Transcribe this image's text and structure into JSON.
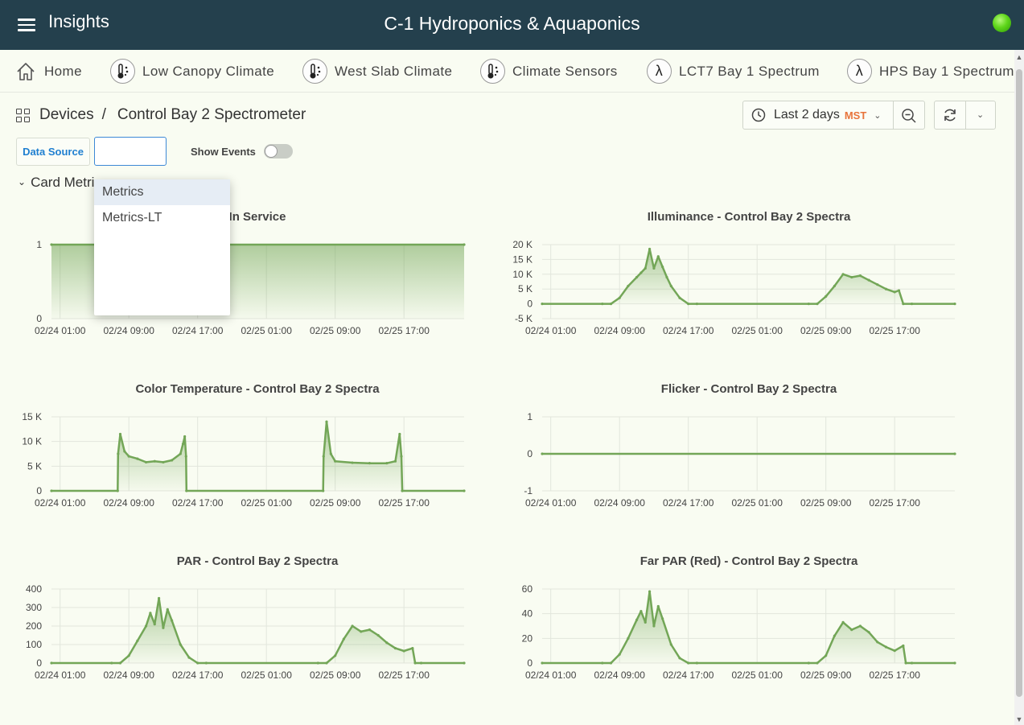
{
  "header": {
    "app_title": "Insights",
    "site_title": "C-1 Hydroponics & Aquaponics",
    "status_color": "#4ccf12"
  },
  "nav": {
    "items": [
      {
        "label": "Home",
        "icon": "home-icon"
      },
      {
        "label": "Low Canopy Climate",
        "icon": "thermometer-icon"
      },
      {
        "label": "West Slab Climate",
        "icon": "thermometer-icon"
      },
      {
        "label": "Climate Sensors",
        "icon": "thermometer-icon"
      },
      {
        "label": "LCT7 Bay 1 Spectrum",
        "icon": "lambda-icon"
      },
      {
        "label": "HPS Bay 1 Spectrum",
        "icon": "lambda-icon"
      }
    ]
  },
  "breadcrumb": {
    "parent": "Devices",
    "separator": "/",
    "current": "Control Bay 2 Spectrometer"
  },
  "timepicker": {
    "range": "Last 2 days",
    "timezone": "MST"
  },
  "controls": {
    "data_source_label": "Data Source",
    "data_source_value": "",
    "show_events_label": "Show Events",
    "show_events_on": false
  },
  "row": {
    "title": "Card Metri"
  },
  "dropdown": {
    "options": [
      "Metrics",
      "Metrics-LT"
    ],
    "highlighted": "Metrics"
  },
  "colors": {
    "series": "#73a657",
    "accent": "#1f7fd0",
    "timezone": "#e8743b"
  },
  "panels": [
    {
      "title": "In Service"
    },
    {
      "title": "Illuminance - Control Bay 2 Spectra"
    },
    {
      "title": "Color Temperature - Control Bay 2 Spectra"
    },
    {
      "title": "Flicker - Control Bay 2 Spectra"
    },
    {
      "title": "PAR - Control Bay 2 Spectra"
    },
    {
      "title": "Far PAR (Red) - Control Bay 2 Spectra"
    }
  ],
  "chart_data": [
    {
      "type": "area",
      "title": "In Service",
      "x_ticks": [
        "02/24 01:00",
        "02/24 09:00",
        "02/24 17:00",
        "02/25 01:00",
        "02/25 09:00",
        "02/25 17:00"
      ],
      "y_ticks": [
        "0",
        "1"
      ],
      "ylim": [
        0,
        1
      ],
      "grid": true,
      "x": [
        -1,
        47
      ],
      "values": [
        1,
        1
      ]
    },
    {
      "type": "area",
      "title": "Illuminance - Control Bay 2 Spectra",
      "x_ticks": [
        "02/24 01:00",
        "02/24 09:00",
        "02/24 17:00",
        "02/25 01:00",
        "02/25 09:00",
        "02/25 17:00"
      ],
      "y_ticks": [
        "-5 K",
        "0",
        "5 K",
        "10 K",
        "15 K",
        "20 K"
      ],
      "ylim": [
        -5000,
        20000
      ],
      "grid": true,
      "x": [
        -1,
        6,
        7,
        8,
        9,
        10,
        10.5,
        11,
        11.5,
        12,
        12.5,
        13,
        13.5,
        14,
        15,
        16,
        17,
        30,
        31,
        32,
        33,
        34,
        35,
        36,
        37,
        38,
        39,
        40,
        40.5,
        41,
        42,
        47
      ],
      "values": [
        0,
        0,
        0,
        2000,
        6000,
        9000,
        10500,
        12000,
        18500,
        12000,
        16000,
        12500,
        9000,
        6000,
        2000,
        0,
        0,
        0,
        0,
        2500,
        6000,
        10000,
        9000,
        9500,
        8000,
        6500,
        5000,
        4000,
        4500,
        0,
        0,
        0
      ]
    },
    {
      "type": "area",
      "title": "Color Temperature - Control Bay 2 Spectra",
      "x_ticks": [
        "02/24 01:00",
        "02/24 09:00",
        "02/24 17:00",
        "02/25 01:00",
        "02/25 09:00",
        "02/25 17:00"
      ],
      "y_ticks": [
        "0",
        "5 K",
        "10 K",
        "15 K"
      ],
      "ylim": [
        0,
        15000
      ],
      "grid": true,
      "x": [
        -1,
        6.7,
        6.75,
        7,
        7.5,
        8,
        9,
        10,
        11,
        12,
        13,
        14,
        14.3,
        14.5,
        14.65,
        14.7,
        30.6,
        30.65,
        31,
        31.5,
        32,
        34,
        36,
        38,
        39,
        39.5,
        39.7,
        39.8,
        47
      ],
      "values": [
        0,
        0,
        7500,
        11500,
        8000,
        7000,
        6500,
        5800,
        6000,
        5800,
        6200,
        7500,
        9500,
        11000,
        7000,
        0,
        0,
        7000,
        14000,
        7500,
        6000,
        5700,
        5600,
        5600,
        6000,
        11500,
        7000,
        0,
        0
      ]
    },
    {
      "type": "line",
      "title": "Flicker - Control Bay 2 Spectra",
      "x_ticks": [
        "02/24 01:00",
        "02/24 09:00",
        "02/24 17:00",
        "02/25 01:00",
        "02/25 09:00",
        "02/25 17:00"
      ],
      "y_ticks": [
        "-1",
        "0",
        "1"
      ],
      "ylim": [
        -1,
        1
      ],
      "grid": true,
      "x": [
        -1,
        47
      ],
      "values": [
        0,
        0
      ]
    },
    {
      "type": "area",
      "title": "PAR - Control Bay 2 Spectra",
      "x_ticks": [
        "02/24 01:00",
        "02/24 09:00",
        "02/24 17:00",
        "02/25 01:00",
        "02/25 09:00",
        "02/25 17:00"
      ],
      "y_ticks": [
        "0",
        "100",
        "200",
        "300",
        "400"
      ],
      "ylim": [
        0,
        400
      ],
      "grid": true,
      "x": [
        -1,
        6,
        7,
        8,
        9,
        10,
        10.5,
        11,
        11.5,
        12,
        12.5,
        13,
        14,
        15,
        16,
        17,
        30,
        31,
        32,
        33,
        34,
        35,
        36,
        37,
        38,
        39,
        40,
        41,
        41.3,
        42,
        47
      ],
      "values": [
        0,
        0,
        0,
        40,
        120,
        200,
        270,
        210,
        350,
        190,
        290,
        230,
        100,
        30,
        0,
        0,
        0,
        0,
        40,
        130,
        200,
        170,
        180,
        150,
        110,
        80,
        65,
        80,
        0,
        0,
        0
      ]
    },
    {
      "type": "area",
      "title": "Far PAR (Red) - Control Bay 2 Spectra",
      "x_ticks": [
        "02/24 01:00",
        "02/24 09:00",
        "02/24 17:00",
        "02/25 01:00",
        "02/25 09:00",
        "02/25 17:00"
      ],
      "y_ticks": [
        "0",
        "20",
        "40",
        "60"
      ],
      "ylim": [
        0,
        60
      ],
      "grid": true,
      "x": [
        -1,
        6,
        7,
        8,
        9,
        10,
        10.5,
        11,
        11.5,
        12,
        12.5,
        13,
        14,
        15,
        16,
        17,
        30,
        31,
        32,
        33,
        34,
        35,
        36,
        37,
        38,
        39,
        40,
        41,
        41.3,
        42,
        47
      ],
      "values": [
        0,
        0,
        0,
        7,
        20,
        35,
        42,
        33,
        58,
        30,
        46,
        36,
        15,
        4,
        0,
        0,
        0,
        0,
        6,
        22,
        33,
        27,
        30,
        25,
        17,
        13,
        10,
        14,
        0,
        0,
        0
      ]
    }
  ]
}
